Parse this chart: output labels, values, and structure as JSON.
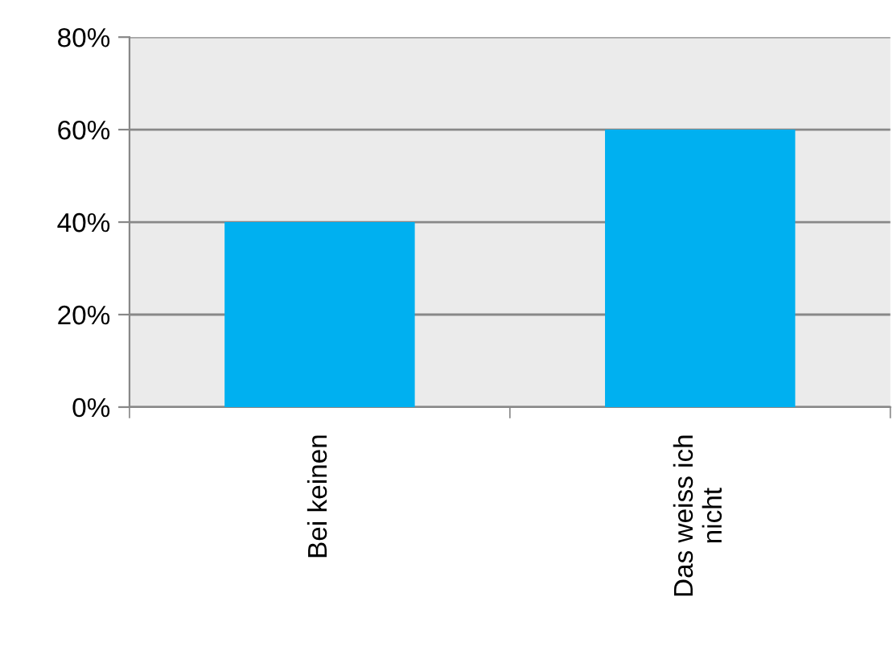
{
  "chart_data": {
    "type": "bar",
    "categories": [
      "Bei keinen",
      "Das weiss ich\nnicht"
    ],
    "values": [
      40,
      60
    ],
    "color": "#00b0f0",
    "ylim": [
      0,
      80
    ],
    "yticks": [
      {
        "value": 0,
        "label": "0%"
      },
      {
        "value": 20,
        "label": "20%"
      },
      {
        "value": 40,
        "label": "40%"
      },
      {
        "value": 60,
        "label": "60%"
      },
      {
        "value": 80,
        "label": "80%"
      }
    ],
    "grid": "y"
  }
}
